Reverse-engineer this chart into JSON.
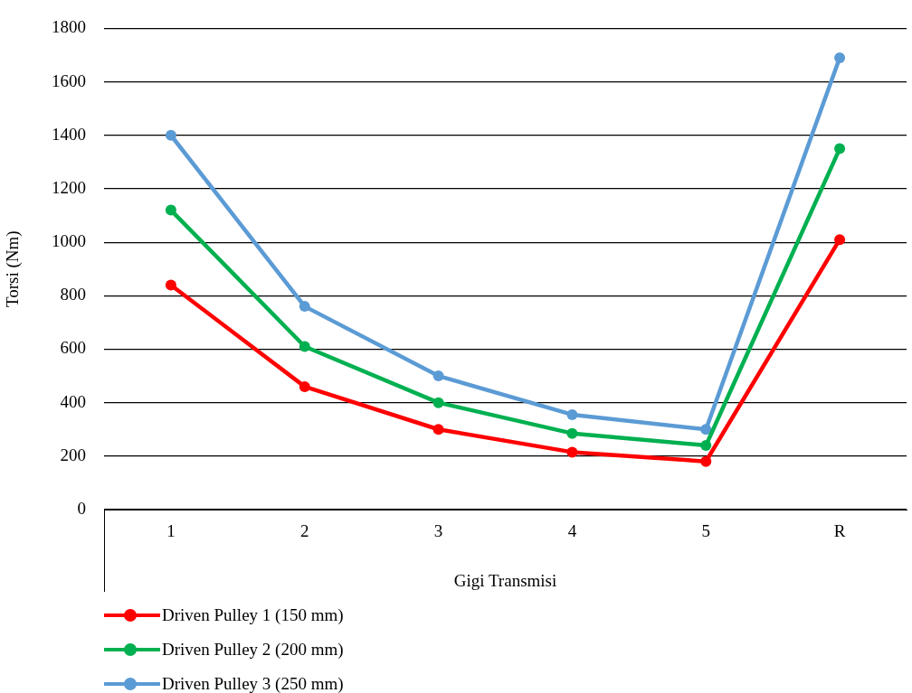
{
  "chart_data": {
    "type": "line",
    "xlabel": "Gigi Transmisi",
    "ylabel": "Torsi (Nm)",
    "categories": [
      "1",
      "2",
      "3",
      "4",
      "5",
      "R"
    ],
    "series": [
      {
        "name": "Driven Pulley 1 (150 mm)",
        "color": "#ff0000",
        "values": [
          840,
          460,
          300,
          215,
          180,
          1010
        ]
      },
      {
        "name": "Driven Pulley 2 (200 mm)",
        "color": "#00b050",
        "values": [
          1120,
          610,
          400,
          285,
          240,
          1350
        ]
      },
      {
        "name": "Driven Pulley 3 (250 mm)",
        "color": "#5b9bd5",
        "values": [
          1400,
          760,
          500,
          355,
          300,
          1690
        ]
      }
    ],
    "ylim": [
      0,
      1800
    ],
    "yticks": [
      0,
      200,
      400,
      600,
      800,
      1000,
      1200,
      1400,
      1600,
      1800
    ],
    "grid": "y",
    "legend": "bottom left",
    "marker": "circle",
    "line_style": "solid"
  }
}
